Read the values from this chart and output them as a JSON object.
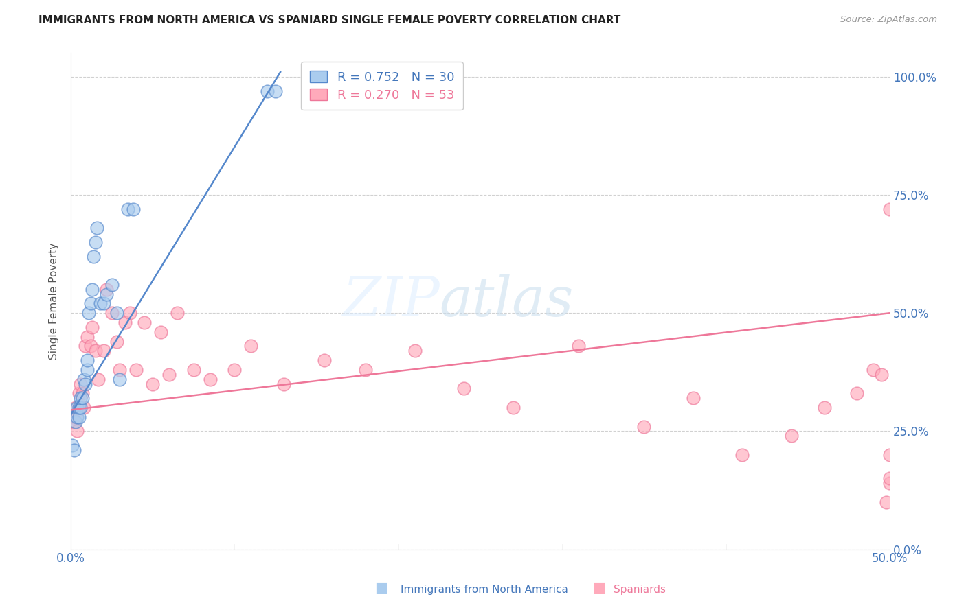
{
  "title": "IMMIGRANTS FROM NORTH AMERICA VS SPANIARD SINGLE FEMALE POVERTY CORRELATION CHART",
  "source": "Source: ZipAtlas.com",
  "ylabel": "Single Female Poverty",
  "xlim": [
    0.0,
    0.5
  ],
  "ylim": [
    0.0,
    1.05
  ],
  "watermark_zip": "ZIP",
  "watermark_atlas": "atlas",
  "legend_blue_r": "R = 0.752",
  "legend_blue_n": "N = 30",
  "legend_pink_r": "R = 0.270",
  "legend_pink_n": "N = 53",
  "blue_fill": "#AACCEE",
  "blue_edge": "#5588CC",
  "pink_fill": "#FFAABB",
  "pink_edge": "#EE7799",
  "line_blue_color": "#5588CC",
  "line_pink_color": "#EE7799",
  "blue_scatter_x": [
    0.001,
    0.002,
    0.003,
    0.004,
    0.004,
    0.005,
    0.005,
    0.006,
    0.006,
    0.007,
    0.008,
    0.009,
    0.01,
    0.01,
    0.011,
    0.012,
    0.013,
    0.014,
    0.015,
    0.016,
    0.018,
    0.02,
    0.022,
    0.025,
    0.028,
    0.03,
    0.035,
    0.038,
    0.12,
    0.125
  ],
  "blue_scatter_y": [
    0.22,
    0.21,
    0.27,
    0.28,
    0.3,
    0.28,
    0.3,
    0.3,
    0.32,
    0.32,
    0.36,
    0.35,
    0.38,
    0.4,
    0.5,
    0.52,
    0.55,
    0.62,
    0.65,
    0.68,
    0.52,
    0.52,
    0.54,
    0.56,
    0.5,
    0.36,
    0.72,
    0.72,
    0.97,
    0.97
  ],
  "pink_scatter_x": [
    0.001,
    0.002,
    0.003,
    0.003,
    0.004,
    0.005,
    0.005,
    0.006,
    0.007,
    0.008,
    0.009,
    0.01,
    0.012,
    0.013,
    0.015,
    0.017,
    0.02,
    0.022,
    0.025,
    0.028,
    0.03,
    0.033,
    0.036,
    0.04,
    0.045,
    0.05,
    0.055,
    0.06,
    0.065,
    0.075,
    0.085,
    0.1,
    0.11,
    0.13,
    0.155,
    0.18,
    0.21,
    0.24,
    0.27,
    0.31,
    0.35,
    0.38,
    0.41,
    0.44,
    0.46,
    0.48,
    0.49,
    0.495,
    0.498,
    0.5,
    0.5,
    0.5,
    0.5
  ],
  "pink_scatter_y": [
    0.28,
    0.27,
    0.28,
    0.3,
    0.25,
    0.3,
    0.33,
    0.35,
    0.33,
    0.3,
    0.43,
    0.45,
    0.43,
    0.47,
    0.42,
    0.36,
    0.42,
    0.55,
    0.5,
    0.44,
    0.38,
    0.48,
    0.5,
    0.38,
    0.48,
    0.35,
    0.46,
    0.37,
    0.5,
    0.38,
    0.36,
    0.38,
    0.43,
    0.35,
    0.4,
    0.38,
    0.42,
    0.34,
    0.3,
    0.43,
    0.26,
    0.32,
    0.2,
    0.24,
    0.3,
    0.33,
    0.38,
    0.37,
    0.1,
    0.2,
    0.14,
    0.72,
    0.15
  ],
  "blue_line_x": [
    0.0,
    0.128
  ],
  "blue_line_y": [
    0.285,
    1.01
  ],
  "pink_line_x": [
    0.0,
    0.5
  ],
  "pink_line_y": [
    0.295,
    0.5
  ],
  "ytick_vals": [
    0.0,
    0.25,
    0.5,
    0.75,
    1.0
  ],
  "ytick_labels": [
    "0.0%",
    "25.0%",
    "50.0%",
    "75.0%",
    "100.0%"
  ],
  "xtick_vals": [
    0.0,
    0.5
  ],
  "xtick_labels": [
    "0.0%",
    "50.0%"
  ]
}
